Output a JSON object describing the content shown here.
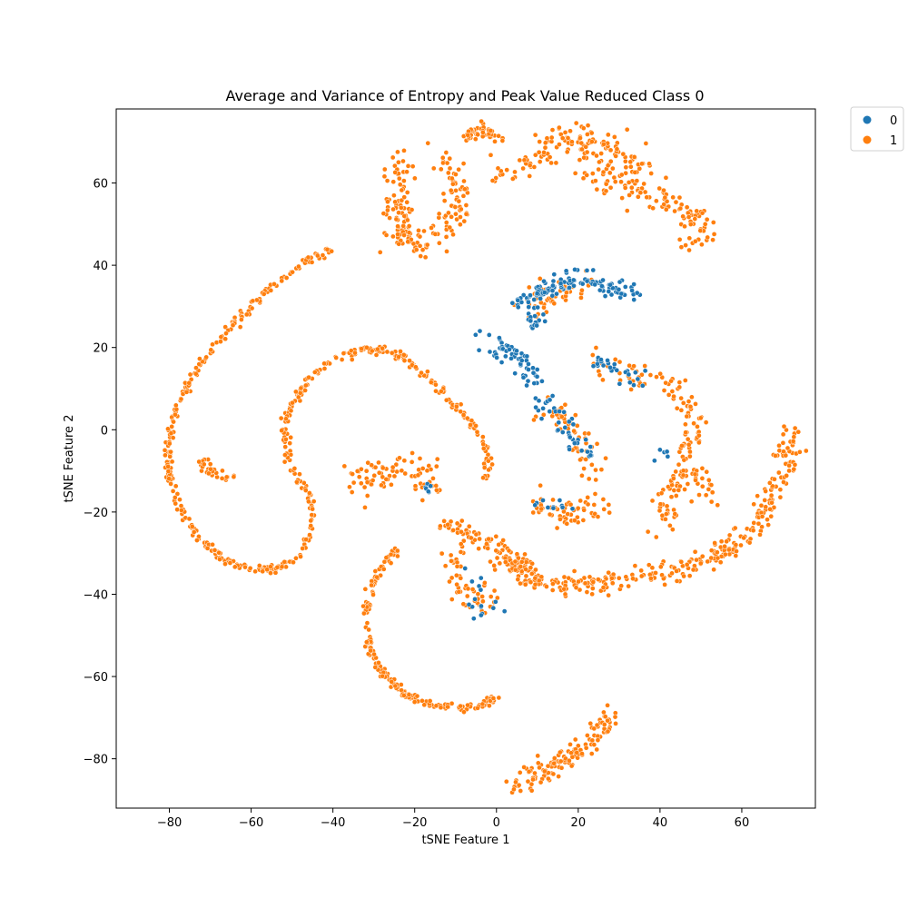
{
  "chart_data": {
    "type": "scatter",
    "title": "Average and Variance of Entropy and Peak Value Reduced Class 0",
    "xlabel": "tSNE Feature 1",
    "ylabel": "tSNE Feature 2",
    "xlim": [
      -93,
      78
    ],
    "ylim": [
      -92,
      78
    ],
    "xticks": [
      -80,
      -60,
      -40,
      -20,
      0,
      20,
      40,
      60
    ],
    "yticks": [
      -80,
      -60,
      -40,
      -20,
      0,
      20,
      40,
      60
    ],
    "xtick_labels": [
      "−80",
      "−60",
      "−40",
      "−20",
      "0",
      "20",
      "40",
      "60"
    ],
    "ytick_labels": [
      "−80",
      "−60",
      "−40",
      "−20",
      "0",
      "20",
      "40",
      "60"
    ],
    "grid": false,
    "legend": {
      "placement": "outside-top-right",
      "entries": [
        {
          "label": "0",
          "color": "#1f77b4"
        },
        {
          "label": "1",
          "color": "#ff7f0e"
        }
      ]
    },
    "series": [
      {
        "name": "1",
        "color": "#ff7f0e",
        "clusters": [
          {
            "type": "curve",
            "points": [
              [
                -40,
                44
              ],
              [
                -48,
                40
              ],
              [
                -56,
                34
              ],
              [
                -64,
                26
              ],
              [
                -71,
                18
              ],
              [
                -76,
                10
              ],
              [
                -79,
                3
              ],
              [
                -80,
                -4
              ],
              [
                -80,
                -12
              ],
              [
                -77,
                -20
              ],
              [
                -72,
                -27
              ],
              [
                -66,
                -32
              ],
              [
                -60,
                -34
              ],
              [
                -54,
                -34
              ],
              [
                -49,
                -31
              ],
              [
                -46,
                -26
              ],
              [
                -45,
                -20
              ],
              [
                -46,
                -15
              ],
              [
                -49,
                -11
              ],
              [
                -51,
                -6
              ],
              [
                -52,
                0
              ],
              [
                -50,
                6
              ],
              [
                -46,
                12
              ],
              [
                -40,
                17
              ],
              [
                -34,
                19.5
              ],
              [
                -28,
                19.5
              ],
              [
                -22,
                17
              ],
              [
                -16,
                12
              ],
              [
                -10,
                6
              ],
              [
                -5,
                0
              ],
              [
                -2,
                -6
              ],
              [
                -3,
                -13
              ]
            ],
            "n": 540,
            "spread": 0.5
          },
          {
            "type": "curve",
            "points": [
              [
                -24,
                -29
              ],
              [
                -28,
                -33
              ],
              [
                -31,
                -39
              ],
              [
                -32,
                -46
              ],
              [
                -31,
                -53
              ],
              [
                -28,
                -59
              ],
              [
                -23,
                -64
              ],
              [
                -17,
                -67
              ],
              [
                -10,
                -67.5
              ],
              [
                -5,
                -67
              ],
              [
                0,
                -65.5
              ]
            ],
            "n": 200,
            "spread": 0.5
          },
          {
            "type": "curve",
            "points": [
              [
                -12,
                -23
              ],
              [
                -8,
                -25
              ],
              [
                -4,
                -27
              ],
              [
                0,
                -29
              ],
              [
                3,
                -31
              ],
              [
                8,
                -36
              ],
              [
                14,
                -38
              ],
              [
                22,
                -38
              ],
              [
                30,
                -37
              ],
              [
                37,
                -36
              ],
              [
                42,
                -34
              ],
              [
                48,
                -33
              ],
              [
                54,
                -31
              ],
              [
                60,
                -27
              ],
              [
                64,
                -22
              ],
              [
                67,
                -17
              ],
              [
                70,
                -11
              ],
              [
                71.5,
                -5
              ],
              [
                72,
                -2
              ],
              [
                71,
                0
              ]
            ],
            "n": 380,
            "spread": 1.4
          },
          {
            "type": "curve",
            "points": [
              [
                4,
                -88
              ],
              [
                10,
                -84
              ],
              [
                16,
                -81
              ],
              [
                21,
                -77
              ],
              [
                25,
                -73
              ],
              [
                29,
                -70
              ]
            ],
            "n": 130,
            "spread": 1.3
          },
          {
            "type": "curve",
            "points": [
              [
                -22,
                44
              ],
              [
                -23,
                48
              ],
              [
                -24,
                54
              ],
              [
                -24,
                60
              ],
              [
                -24,
                66
              ]
            ],
            "n": 90,
            "spread": 1.8
          },
          {
            "type": "curve",
            "points": [
              [
                -20,
                45
              ],
              [
                -14,
                48
              ],
              [
                -10,
                52
              ],
              [
                -8,
                57
              ],
              [
                -10,
                62
              ],
              [
                -13,
                66
              ]
            ],
            "n": 90,
            "spread": 2.0
          },
          {
            "type": "curve",
            "points": [
              [
                -8,
                72
              ],
              [
                -3,
                72.5
              ],
              [
                1,
                71
              ]
            ],
            "n": 45,
            "spread": 1.0
          },
          {
            "type": "curve",
            "points": [
              [
                0,
                61
              ],
              [
                6,
                63
              ],
              [
                10,
                66
              ],
              [
                14,
                70
              ],
              [
                18,
                71
              ],
              [
                24,
                70
              ],
              [
                28,
                68
              ],
              [
                32,
                66
              ],
              [
                36,
                63
              ]
            ],
            "n": 140,
            "spread": 2.0
          },
          {
            "type": "curve",
            "points": [
              [
                20,
                62
              ],
              [
                28,
                61
              ],
              [
                35,
                58
              ],
              [
                40,
                56
              ],
              [
                44,
                54
              ],
              [
                48,
                52
              ],
              [
                51,
                49
              ],
              [
                50,
                46
              ],
              [
                46,
                47
              ]
            ],
            "n": 120,
            "spread": 1.8
          },
          {
            "type": "curve",
            "points": [
              [
                -73,
                -7
              ],
              [
                -70,
                -10
              ],
              [
                -67,
                -11
              ],
              [
                -64,
                -12
              ]
            ],
            "n": 30,
            "spread": 0.8
          },
          {
            "type": "curve",
            "points": [
              [
                -36,
                -11
              ],
              [
                -32,
                -12
              ],
              [
                -28,
                -11
              ],
              [
                -24,
                -10
              ],
              [
                -20,
                -9
              ],
              [
                -17,
                -12
              ],
              [
                -15,
                -15
              ]
            ],
            "n": 80,
            "spread": 2.2
          },
          {
            "type": "curve",
            "points": [
              [
                23,
                17
              ],
              [
                28,
                14
              ],
              [
                33,
                13
              ],
              [
                38,
                12
              ],
              [
                43,
                11
              ],
              [
                47,
                7
              ],
              [
                48,
                2
              ],
              [
                47,
                -3
              ],
              [
                45,
                -8
              ],
              [
                43,
                -14
              ],
              [
                41,
                -19
              ],
              [
                40,
                -25
              ]
            ],
            "n": 140,
            "spread": 1.6
          },
          {
            "type": "curve",
            "points": [
              [
                44,
                -10
              ],
              [
                48,
                -11
              ],
              [
                51,
                -13
              ],
              [
                52,
                -16
              ]
            ],
            "n": 28,
            "spread": 1.3
          },
          {
            "type": "curve",
            "points": [
              [
                10,
                -18
              ],
              [
                14,
                -20
              ],
              [
                18,
                -21
              ],
              [
                22,
                -20
              ],
              [
                26,
                -17
              ]
            ],
            "n": 60,
            "spread": 1.8
          },
          {
            "type": "curve",
            "points": [
              [
                -12,
                -30
              ],
              [
                -9,
                -35
              ],
              [
                -7,
                -40
              ],
              [
                -3,
                -42
              ],
              [
                -1,
                -44
              ]
            ],
            "n": 50,
            "spread": 2.0
          },
          {
            "type": "curve",
            "points": [
              [
                2,
                -30
              ],
              [
                5,
                -33
              ],
              [
                9,
                -35
              ]
            ],
            "n": 30,
            "spread": 1.5
          },
          {
            "type": "curve",
            "points": [
              [
                8,
                28
              ],
              [
                10,
                32
              ],
              [
                14,
                34
              ],
              [
                18,
                35
              ],
              [
                22,
                35
              ]
            ],
            "n": 50,
            "spread": 1.6
          },
          {
            "type": "curve",
            "points": [
              [
                10,
                5
              ],
              [
                14,
                4
              ],
              [
                18,
                2
              ],
              [
                20,
                -2
              ],
              [
                22,
                -5
              ],
              [
                23,
                -10
              ]
            ],
            "n": 50,
            "spread": 1.8
          }
        ]
      },
      {
        "name": "0",
        "color": "#1f77b4",
        "clusters": [
          {
            "type": "curve",
            "points": [
              [
                6,
                32
              ],
              [
                10,
                33
              ],
              [
                14,
                35
              ],
              [
                18,
                37
              ],
              [
                22,
                36
              ],
              [
                26,
                35
              ],
              [
                30,
                34.5
              ],
              [
                34,
                33
              ]
            ],
            "n": 120,
            "spread": 1.2
          },
          {
            "type": "curve",
            "points": [
              [
                10,
                24
              ],
              [
                9,
                28
              ],
              [
                10,
                31
              ]
            ],
            "n": 20,
            "spread": 1.0
          },
          {
            "type": "curve",
            "points": [
              [
                -6,
                24
              ],
              [
                -2,
                21
              ],
              [
                2,
                19
              ],
              [
                6,
                17
              ],
              [
                9,
                12
              ],
              [
                11,
                8
              ],
              [
                13,
                4
              ]
            ],
            "n": 70,
            "spread": 1.3
          },
          {
            "type": "curve",
            "points": [
              [
                16,
                3
              ],
              [
                18,
                0
              ],
              [
                19,
                -3
              ],
              [
                21,
                -5
              ],
              [
                23,
                -5
              ]
            ],
            "n": 30,
            "spread": 1.4
          },
          {
            "type": "curve",
            "points": [
              [
                22,
                18
              ],
              [
                26,
                16
              ],
              [
                30,
                14
              ],
              [
                34,
                12
              ],
              [
                38,
                12
              ]
            ],
            "n": 25,
            "spread": 1.0
          },
          {
            "type": "curve",
            "points": [
              [
                40,
                -5
              ],
              [
                42,
                -6
              ]
            ],
            "n": 6,
            "spread": 1.0
          },
          {
            "type": "curve",
            "points": [
              [
                -7,
                -36
              ],
              [
                -5,
                -40
              ],
              [
                -6,
                -44
              ],
              [
                -1,
                -42
              ]
            ],
            "n": 16,
            "spread": 1.8
          },
          {
            "type": "curve",
            "points": [
              [
                10,
                -18
              ],
              [
                14,
                -18
              ],
              [
                18,
                -19
              ]
            ],
            "n": 10,
            "spread": 1.0
          },
          {
            "type": "curve",
            "points": [
              [
                -18,
                -13
              ],
              [
                -16,
                -15
              ]
            ],
            "n": 6,
            "spread": 0.6
          }
        ]
      }
    ]
  }
}
